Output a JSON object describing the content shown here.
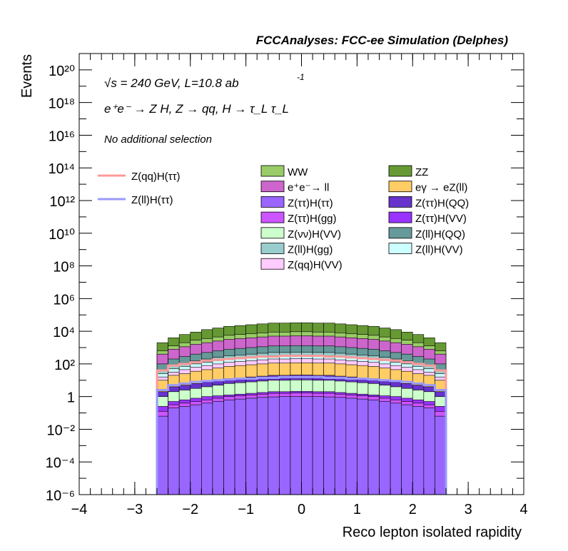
{
  "header": {
    "title": "FCCAnalyses: FCC-ee Simulation (Delphes)"
  },
  "annotations": {
    "energy_line": "√s = 240 GeV, L=10.8 ab",
    "energy_exp": "-1",
    "process_line": "e⁺e⁻ → Z H, Z → qq, H → τ_L τ_L",
    "selection_line": "No additional selection"
  },
  "chart_data": {
    "type": "area",
    "title": "FCCAnalyses: FCC-ee Simulation (Delphes)",
    "xlabel": "Reco lepton isolated rapidity",
    "ylabel": "Events",
    "xlim": [
      -4,
      4
    ],
    "ylim": [
      1e-06,
      1e+21
    ],
    "yscale": "log",
    "grid": false,
    "legend": "top-right",
    "x_ticks": [
      "−4",
      "−3",
      "−2",
      "−1",
      "0",
      "1",
      "2",
      "3",
      "4"
    ],
    "y_ticks": [
      "10⁻⁶",
      "10⁻⁴",
      "10⁻²",
      "1",
      "10²",
      "10⁴",
      "10⁶",
      "10⁸",
      "10¹⁰",
      "10¹²",
      "10¹⁴",
      "10¹⁶",
      "10¹⁸",
      "10²⁰"
    ],
    "x_bin_edges": [
      -2.6,
      -2.4,
      -2.2,
      -2.0,
      -1.8,
      -1.6,
      -1.4,
      -1.2,
      -1.0,
      -0.8,
      -0.6,
      -0.4,
      -0.2,
      0.0,
      0.2,
      0.4,
      0.6,
      0.8,
      1.0,
      1.2,
      1.4,
      1.6,
      1.8,
      2.0,
      2.2,
      2.4,
      2.6
    ],
    "stacked_total_log10": [
      3.3,
      3.6,
      3.8,
      3.95,
      4.1,
      4.2,
      4.3,
      4.35,
      4.4,
      4.45,
      4.5,
      4.5,
      4.52,
      4.52,
      4.5,
      4.5,
      4.45,
      4.4,
      4.35,
      4.3,
      4.2,
      4.1,
      3.95,
      3.8,
      3.6,
      3.3
    ],
    "series": [
      {
        "name": "Z(ττ)H(ττ)",
        "color": "#9966ff",
        "log10_cumulative": [
          -1.2,
          -0.7,
          -0.6,
          -0.5,
          -0.4,
          -0.3,
          -0.2,
          -0.15,
          -0.1,
          -0.05,
          -0.02,
          0.0,
          0.0,
          0.0,
          0.0,
          -0.02,
          -0.05,
          -0.1,
          -0.15,
          -0.2,
          -0.3,
          -0.4,
          -0.5,
          -0.6,
          -0.7,
          -1.2
        ]
      },
      {
        "name": "Z(ττ)H(gg)",
        "color": "#cc55ff",
        "log10_cumulative": [
          -0.9,
          -0.5,
          -0.4,
          -0.3,
          -0.2,
          -0.1,
          0.0,
          0.05,
          0.1,
          0.15,
          0.2,
          0.2,
          0.22,
          0.22,
          0.2,
          0.2,
          0.15,
          0.1,
          0.05,
          0.0,
          -0.1,
          -0.2,
          -0.3,
          -0.4,
          -0.5,
          -0.9
        ]
      },
      {
        "name": "Z(ττ)H(VV)",
        "color": "#9933ff",
        "log10_cumulative": [
          -0.6,
          -0.3,
          -0.2,
          -0.1,
          0.0,
          0.05,
          0.1,
          0.15,
          0.2,
          0.25,
          0.3,
          0.3,
          0.32,
          0.32,
          0.3,
          0.3,
          0.25,
          0.2,
          0.15,
          0.1,
          0.05,
          0.0,
          -0.1,
          -0.2,
          -0.3,
          -0.6
        ]
      },
      {
        "name": "Z(νν)H(VV)",
        "color": "#ccffcc",
        "log10_cumulative": [
          0.0,
          0.3,
          0.4,
          0.5,
          0.6,
          0.7,
          0.8,
          0.85,
          0.9,
          0.95,
          1.0,
          1.0,
          1.02,
          1.02,
          1.0,
          1.0,
          0.95,
          0.9,
          0.85,
          0.8,
          0.7,
          0.6,
          0.5,
          0.4,
          0.3,
          0.0
        ]
      },
      {
        "name": "Z(ττ)H(QQ)",
        "color": "#6633cc",
        "log10_cumulative": [
          0.3,
          0.6,
          0.7,
          0.8,
          0.9,
          1.0,
          1.1,
          1.15,
          1.2,
          1.25,
          1.3,
          1.3,
          1.32,
          1.32,
          1.3,
          1.3,
          1.25,
          1.2,
          1.15,
          1.1,
          1.0,
          0.9,
          0.8,
          0.7,
          0.6,
          0.3
        ]
      },
      {
        "name": "eγ → eZ(ll)",
        "color": "#ffcc66",
        "log10_cumulative": [
          1.0,
          1.3,
          1.4,
          1.55,
          1.65,
          1.75,
          1.85,
          1.9,
          1.95,
          2.0,
          2.05,
          2.05,
          2.07,
          2.07,
          2.05,
          2.05,
          2.0,
          1.95,
          1.9,
          1.85,
          1.75,
          1.65,
          1.55,
          1.4,
          1.3,
          1.0
        ]
      },
      {
        "name": "Z(qq)H(VV)",
        "color": "#ffccff",
        "log10_cumulative": [
          1.2,
          1.5,
          1.65,
          1.8,
          1.9,
          2.0,
          2.1,
          2.15,
          2.2,
          2.25,
          2.3,
          2.3,
          2.32,
          2.32,
          2.3,
          2.3,
          2.25,
          2.2,
          2.15,
          2.1,
          2.0,
          1.9,
          1.8,
          1.65,
          1.5,
          1.2
        ]
      },
      {
        "name": "Z(ll)H(VV)",
        "color": "#ccffff",
        "log10_cumulative": [
          1.4,
          1.7,
          1.85,
          2.0,
          2.1,
          2.2,
          2.3,
          2.35,
          2.4,
          2.45,
          2.5,
          2.5,
          2.52,
          2.52,
          2.5,
          2.5,
          2.45,
          2.4,
          2.35,
          2.3,
          2.2,
          2.1,
          2.0,
          1.85,
          1.7,
          1.4
        ]
      },
      {
        "name": "Z(ll)H(gg)",
        "color": "#99cccc",
        "log10_cumulative": [
          1.6,
          1.9,
          2.05,
          2.2,
          2.3,
          2.4,
          2.5,
          2.55,
          2.6,
          2.65,
          2.7,
          2.7,
          2.72,
          2.72,
          2.7,
          2.7,
          2.65,
          2.6,
          2.55,
          2.5,
          2.4,
          2.3,
          2.2,
          2.05,
          1.9,
          1.6
        ]
      },
      {
        "name": "Z(ll)H(QQ)",
        "color": "#669999",
        "log10_cumulative": [
          2.0,
          2.3,
          2.45,
          2.6,
          2.7,
          2.8,
          2.9,
          2.95,
          3.0,
          3.05,
          3.1,
          3.1,
          3.12,
          3.12,
          3.1,
          3.1,
          3.05,
          3.0,
          2.95,
          2.9,
          2.8,
          2.7,
          2.6,
          2.45,
          2.3,
          2.0
        ]
      },
      {
        "name": "e⁺e⁻→ ll",
        "color": "#cc66cc",
        "log10_cumulative": [
          2.6,
          2.9,
          3.05,
          3.2,
          3.3,
          3.4,
          3.5,
          3.55,
          3.6,
          3.65,
          3.7,
          3.7,
          3.72,
          3.72,
          3.7,
          3.7,
          3.65,
          3.6,
          3.55,
          3.5,
          3.4,
          3.3,
          3.2,
          3.05,
          2.9,
          2.6
        ]
      },
      {
        "name": "WW",
        "color": "#99cc66",
        "log10_cumulative": [
          2.8,
          3.1,
          3.3,
          3.45,
          3.55,
          3.65,
          3.75,
          3.8,
          3.85,
          3.9,
          3.95,
          3.95,
          3.97,
          3.97,
          3.95,
          3.95,
          3.9,
          3.85,
          3.8,
          3.75,
          3.65,
          3.55,
          3.45,
          3.3,
          3.1,
          2.8
        ]
      },
      {
        "name": "ZZ",
        "color": "#669933",
        "log10_cumulative": [
          3.3,
          3.6,
          3.8,
          3.95,
          4.1,
          4.2,
          4.3,
          4.35,
          4.4,
          4.45,
          4.5,
          4.5,
          4.52,
          4.52,
          4.5,
          4.5,
          4.45,
          4.4,
          4.35,
          4.3,
          4.2,
          4.1,
          3.95,
          3.8,
          3.6,
          3.3
        ]
      }
    ],
    "signal_lines": [
      {
        "name": "Z(qq)H(ττ)",
        "color": "#ff9999",
        "log10": [
          1.6,
          1.9,
          2.0,
          2.1,
          2.2,
          2.25,
          2.3,
          2.35,
          2.4,
          2.45,
          2.45,
          2.5,
          2.5,
          2.5,
          2.5,
          2.45,
          2.45,
          2.4,
          2.35,
          2.3,
          2.25,
          2.2,
          2.1,
          2.0,
          1.9,
          1.6
        ]
      },
      {
        "name": "Z(ll)H(ττ)",
        "color": "#9999ff",
        "log10": [
          0.4,
          0.7,
          0.8,
          0.9,
          0.95,
          1.0,
          1.05,
          1.1,
          1.1,
          1.15,
          1.15,
          1.2,
          1.2,
          1.2,
          1.2,
          1.15,
          1.15,
          1.1,
          1.1,
          1.05,
          1.0,
          0.95,
          0.9,
          0.8,
          0.7,
          0.4
        ]
      }
    ],
    "legend_stack_order": [
      "WW",
      "ZZ",
      "e⁺e⁻→ ll",
      "eγ → eZ(ll)",
      "Z(ττ)H(ττ)",
      "Z(ττ)H(QQ)",
      "Z(ττ)H(gg)",
      "Z(ττ)H(VV)",
      "Z(νν)H(VV)",
      "Z(ll)H(QQ)",
      "Z(ll)H(gg)",
      "Z(ll)H(VV)",
      "Z(qq)H(VV)"
    ],
    "legend_line_order": [
      "Z(qq)H(ττ)",
      "Z(ll)H(ττ)"
    ]
  }
}
